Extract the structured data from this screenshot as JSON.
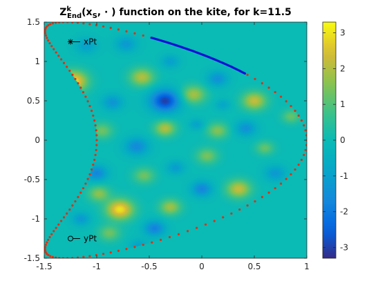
{
  "chart_data": {
    "type": "heatmap",
    "title": {
      "prefix": "Z",
      "sup": "k",
      "sub": "End",
      "arg_open": "(x",
      "arg_sub": "S",
      "arg_close": ", · ) function on the kite, for k=11.5"
    },
    "xlim": [
      -1.5,
      1
    ],
    "ylim": [
      -1.5,
      1.5
    ],
    "x_ticks": [
      {
        "value": -1.5,
        "label": "-1.5"
      },
      {
        "value": -1,
        "label": "-1"
      },
      {
        "value": -0.5,
        "label": "-0.5"
      },
      {
        "value": 0,
        "label": "0"
      },
      {
        "value": 0.5,
        "label": "0.5"
      },
      {
        "value": 1,
        "label": "1"
      }
    ],
    "y_ticks": [
      {
        "value": 1.5,
        "label": "1.5"
      },
      {
        "value": 1,
        "label": "1"
      },
      {
        "value": 0.5,
        "label": "0.5"
      },
      {
        "value": 0,
        "label": "0"
      },
      {
        "value": -0.5,
        "label": "-0.5"
      },
      {
        "value": -1,
        "label": "-1"
      },
      {
        "value": -1.5,
        "label": "-1.5"
      }
    ],
    "colorbar": {
      "colormap": "parula",
      "clim": [
        -3.3,
        3.3
      ],
      "ticks": [
        {
          "value": 3,
          "label": "3"
        },
        {
          "value": 2,
          "label": "2"
        },
        {
          "value": 1,
          "label": "1"
        },
        {
          "value": 0,
          "label": "0"
        },
        {
          "value": -1,
          "label": "-1"
        },
        {
          "value": -2,
          "label": "-2"
        },
        {
          "value": -3,
          "label": "-3"
        }
      ]
    },
    "background_value": 0,
    "boundary_color": "#e03010",
    "highlight_color": "#1010d8",
    "highlight_segment_t": [
      0.6,
      1.05
    ],
    "points": [
      {
        "name": "xPt",
        "label": "xPt",
        "x": -1.25,
        "y": 1.25,
        "marker": "asterisk"
      },
      {
        "name": "yPt",
        "label": "yPt",
        "x": -1.25,
        "y": -1.25,
        "marker": "circle"
      }
    ],
    "blobs": [
      {
        "x": -1.22,
        "y": 0.75,
        "v": 3.0,
        "s": 0.09
      },
      {
        "x": -0.78,
        "y": -0.88,
        "v": 3.0,
        "s": 0.09
      },
      {
        "x": -0.35,
        "y": 0.5,
        "v": -3.0,
        "s": 0.1
      },
      {
        "x": -0.57,
        "y": 0.8,
        "v": 2.0,
        "s": 0.08
      },
      {
        "x": -0.08,
        "y": 0.58,
        "v": 1.9,
        "s": 0.08
      },
      {
        "x": 0.5,
        "y": 0.5,
        "v": 2.2,
        "s": 0.08
      },
      {
        "x": 0.35,
        "y": -0.62,
        "v": 2.2,
        "s": 0.08
      },
      {
        "x": -0.35,
        "y": 0.15,
        "v": 2.0,
        "s": 0.07
      },
      {
        "x": -0.3,
        "y": -0.85,
        "v": 1.8,
        "s": 0.07
      },
      {
        "x": -0.98,
        "y": -0.68,
        "v": 1.6,
        "s": 0.07
      },
      {
        "x": 0.05,
        "y": -0.2,
        "v": 1.4,
        "s": 0.07
      },
      {
        "x": 0.15,
        "y": 0.12,
        "v": 1.5,
        "s": 0.07
      },
      {
        "x": -0.95,
        "y": 0.12,
        "v": 1.3,
        "s": 0.07
      },
      {
        "x": -1.2,
        "y": -0.12,
        "v": 1.2,
        "s": 0.06
      },
      {
        "x": -0.88,
        "y": -1.18,
        "v": 1.3,
        "s": 0.07
      },
      {
        "x": -0.55,
        "y": -0.45,
        "v": 1.3,
        "s": 0.07
      },
      {
        "x": 0.6,
        "y": -0.1,
        "v": 1.2,
        "s": 0.06
      },
      {
        "x": 0.85,
        "y": 0.3,
        "v": 1.2,
        "s": 0.06
      },
      {
        "x": -1.0,
        "y": -0.42,
        "v": -1.7,
        "s": 0.07
      },
      {
        "x": -0.62,
        "y": -0.08,
        "v": -1.6,
        "s": 0.08
      },
      {
        "x": 0.0,
        "y": -0.62,
        "v": -1.7,
        "s": 0.07
      },
      {
        "x": -0.45,
        "y": -1.12,
        "v": -1.8,
        "s": 0.07
      },
      {
        "x": 0.15,
        "y": 0.78,
        "v": -1.4,
        "s": 0.07
      },
      {
        "x": -0.85,
        "y": 0.48,
        "v": -1.3,
        "s": 0.07
      },
      {
        "x": -0.72,
        "y": 1.22,
        "v": -1.2,
        "s": 0.07
      },
      {
        "x": -1.1,
        "y": 1.2,
        "v": -1.0,
        "s": 0.07
      },
      {
        "x": 0.42,
        "y": 0.15,
        "v": -1.4,
        "s": 0.07
      },
      {
        "x": 0.7,
        "y": -0.42,
        "v": -1.2,
        "s": 0.07
      },
      {
        "x": -0.25,
        "y": -0.35,
        "v": -1.1,
        "s": 0.06
      },
      {
        "x": -1.3,
        "y": 0.3,
        "v": -1.2,
        "s": 0.06
      },
      {
        "x": -1.35,
        "y": -0.85,
        "v": -1.0,
        "s": 0.06
      },
      {
        "x": -1.15,
        "y": -1.0,
        "v": -1.2,
        "s": 0.06
      },
      {
        "x": -0.6,
        "y": -1.35,
        "v": -1.0,
        "s": 0.06
      },
      {
        "x": 0.3,
        "y": -1.1,
        "v": -1.1,
        "s": 0.06
      },
      {
        "x": -0.3,
        "y": 1.0,
        "v": -1.0,
        "s": 0.06
      },
      {
        "x": 0.55,
        "y": 0.9,
        "v": -0.9,
        "s": 0.06
      },
      {
        "x": 0.2,
        "y": 0.45,
        "v": -0.8,
        "s": 0.05
      },
      {
        "x": -0.05,
        "y": 0.2,
        "v": -0.9,
        "s": 0.05
      }
    ]
  }
}
